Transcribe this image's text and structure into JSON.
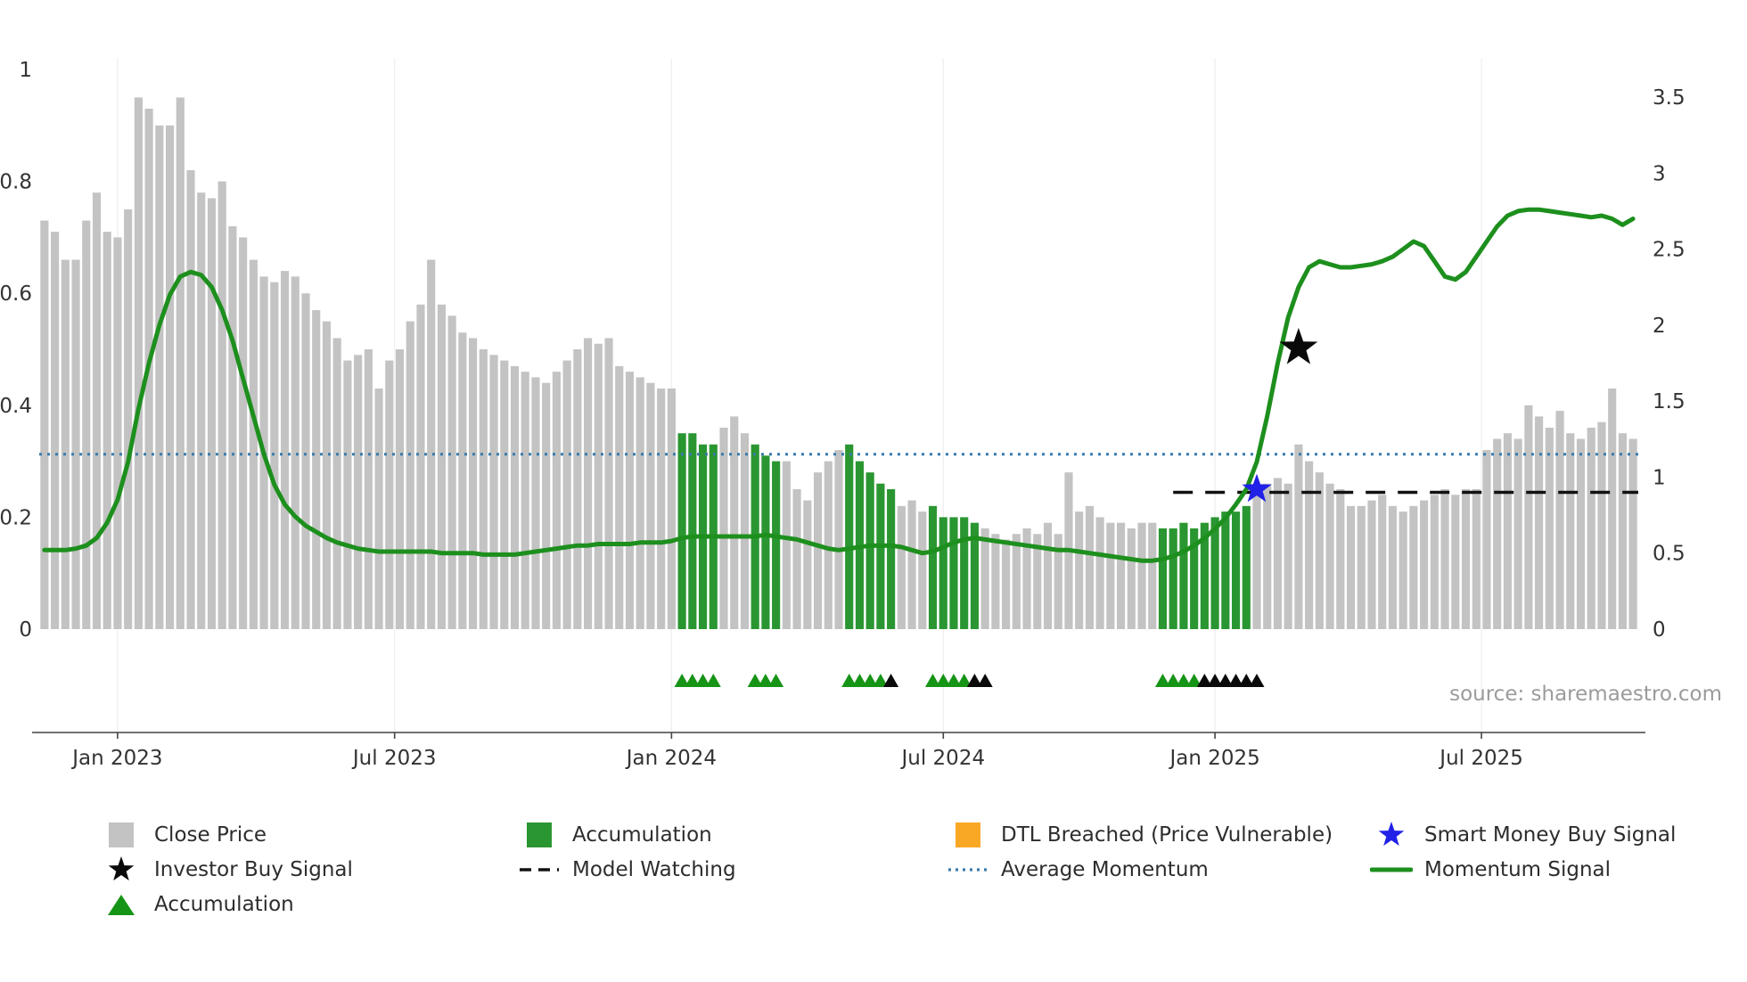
{
  "source_text": "source: sharemaestro.com",
  "colors": {
    "bar_gray": "#c3c3c3",
    "bar_green": "#2a9631",
    "momentum_green": "#1d8f1d",
    "avg_momentum_blue": "#3b7bab",
    "model_watching_black": "#111111",
    "smart_money_blue": "#2121e8",
    "investor_black": "#0a0a0a",
    "dtl_orange": "#f9a825",
    "triangle_green": "#169416",
    "triangle_black": "#0a0a0a"
  },
  "chart_data": {
    "type": "bar+line",
    "x_unit": "weekly",
    "x_tick_labels": [
      "Jan 2023",
      "Jul 2023",
      "Jan 2024",
      "Jul 2024",
      "Jan 2025",
      "Jul 2025"
    ],
    "x_tick_indices": [
      7,
      33.5,
      60,
      86,
      112,
      137.5
    ],
    "left_axis": {
      "ticks": [
        0,
        0.2,
        0.4,
        0.6,
        0.8,
        1
      ],
      "range": [
        0,
        1
      ]
    },
    "right_axis": {
      "ticks": [
        0,
        0.5,
        1,
        1.5,
        2,
        2.5,
        3,
        3.5
      ],
      "range": [
        0,
        3.5
      ]
    },
    "grid": "vertical-faint",
    "legend_position": "bottom",
    "series": [
      {
        "name": "Close Price",
        "type": "bar",
        "axis": "left",
        "values": [
          0.73,
          0.71,
          0.66,
          0.66,
          0.73,
          0.78,
          0.71,
          0.7,
          0.75,
          0.95,
          0.93,
          0.9,
          0.9,
          0.95,
          0.82,
          0.78,
          0.77,
          0.8,
          0.72,
          0.7,
          0.66,
          0.63,
          0.62,
          0.64,
          0.63,
          0.6,
          0.57,
          0.55,
          0.52,
          0.48,
          0.49,
          0.5,
          0.43,
          0.48,
          0.5,
          0.55,
          0.58,
          0.66,
          0.58,
          0.56,
          0.53,
          0.52,
          0.5,
          0.49,
          0.48,
          0.47,
          0.46,
          0.45,
          0.44,
          0.46,
          0.48,
          0.5,
          0.52,
          0.51,
          0.52,
          0.47,
          0.46,
          0.45,
          0.44,
          0.43,
          0.43,
          0.35,
          0.35,
          0.33,
          0.33,
          0.36,
          0.38,
          0.35,
          0.33,
          0.31,
          0.3,
          0.3,
          0.25,
          0.23,
          0.28,
          0.3,
          0.32,
          0.33,
          0.3,
          0.28,
          0.26,
          0.25,
          0.22,
          0.23,
          0.21,
          0.22,
          0.2,
          0.2,
          0.2,
          0.19,
          0.18,
          0.17,
          0.16,
          0.17,
          0.18,
          0.17,
          0.19,
          0.17,
          0.28,
          0.21,
          0.22,
          0.2,
          0.19,
          0.19,
          0.18,
          0.19,
          0.19,
          0.18,
          0.18,
          0.19,
          0.18,
          0.19,
          0.2,
          0.21,
          0.21,
          0.22,
          0.25,
          0.26,
          0.27,
          0.26,
          0.33,
          0.3,
          0.28,
          0.26,
          0.25,
          0.22,
          0.22,
          0.23,
          0.24,
          0.22,
          0.21,
          0.22,
          0.23,
          0.24,
          0.25,
          0.24,
          0.25,
          0.25,
          0.32,
          0.34,
          0.35,
          0.34,
          0.4,
          0.38,
          0.36,
          0.39,
          0.35,
          0.34,
          0.36,
          0.37,
          0.43,
          0.35,
          0.34
        ]
      },
      {
        "name": "Momentum Signal",
        "type": "line",
        "axis": "right",
        "values": [
          0.52,
          0.52,
          0.52,
          0.53,
          0.55,
          0.6,
          0.7,
          0.85,
          1.1,
          1.45,
          1.75,
          2.0,
          2.2,
          2.32,
          2.35,
          2.33,
          2.25,
          2.1,
          1.9,
          1.65,
          1.4,
          1.15,
          0.95,
          0.82,
          0.74,
          0.68,
          0.64,
          0.6,
          0.57,
          0.55,
          0.53,
          0.52,
          0.51,
          0.51,
          0.51,
          0.51,
          0.51,
          0.51,
          0.5,
          0.5,
          0.5,
          0.5,
          0.49,
          0.49,
          0.49,
          0.49,
          0.5,
          0.51,
          0.52,
          0.53,
          0.54,
          0.55,
          0.55,
          0.56,
          0.56,
          0.56,
          0.56,
          0.57,
          0.57,
          0.57,
          0.58,
          0.6,
          0.61,
          0.61,
          0.61,
          0.61,
          0.61,
          0.61,
          0.61,
          0.62,
          0.61,
          0.6,
          0.59,
          0.57,
          0.55,
          0.53,
          0.52,
          0.53,
          0.54,
          0.55,
          0.55,
          0.55,
          0.54,
          0.52,
          0.5,
          0.51,
          0.54,
          0.57,
          0.59,
          0.6,
          0.59,
          0.58,
          0.57,
          0.56,
          0.55,
          0.54,
          0.53,
          0.52,
          0.52,
          0.51,
          0.5,
          0.49,
          0.48,
          0.47,
          0.46,
          0.45,
          0.45,
          0.46,
          0.48,
          0.51,
          0.55,
          0.6,
          0.66,
          0.73,
          0.82,
          0.92,
          1.1,
          1.4,
          1.75,
          2.05,
          2.25,
          2.38,
          2.42,
          2.4,
          2.38,
          2.38,
          2.39,
          2.4,
          2.42,
          2.45,
          2.5,
          2.55,
          2.52,
          2.42,
          2.32,
          2.3,
          2.35,
          2.45,
          2.55,
          2.65,
          2.72,
          2.75,
          2.76,
          2.76,
          2.75,
          2.74,
          2.73,
          2.72,
          2.71,
          2.72,
          2.7,
          2.66,
          2.7
        ]
      }
    ],
    "accumulation_bar_indices": [
      61,
      62,
      63,
      64,
      68,
      69,
      70,
      77,
      78,
      79,
      80,
      81,
      85,
      86,
      87,
      88,
      89,
      107,
      108,
      109,
      110,
      111,
      112,
      113,
      114,
      115
    ],
    "average_momentum": {
      "value": 1.15,
      "axis": "right",
      "span": "full"
    },
    "model_watching": {
      "value": 0.9,
      "start_index": 108,
      "axis": "right"
    },
    "investor_buy_signal": {
      "index": 120,
      "value": 1.85,
      "axis": "right"
    },
    "smart_money_buy_signal": {
      "index": 116,
      "value": 0.92,
      "axis": "right"
    },
    "accumulation_markers_green": [
      61,
      62,
      63,
      64,
      68,
      69,
      70,
      77,
      78,
      79,
      80,
      85,
      86,
      87,
      88,
      107,
      108,
      109,
      110
    ],
    "accumulation_markers_black": [
      81,
      89,
      90,
      111,
      112,
      113,
      114,
      115,
      116
    ]
  },
  "legend": {
    "rows": [
      [
        {
          "marker": "square",
          "color": "#c3c3c3",
          "label": "Close Price"
        },
        {
          "marker": "square",
          "color": "#2a9631",
          "label": "Accumulation"
        },
        {
          "marker": "square",
          "color": "#f9a825",
          "label": "DTL Breached (Price Vulnerable)"
        },
        {
          "marker": "star",
          "color": "#2121e8",
          "label": "Smart Money Buy Signal"
        }
      ],
      [
        {
          "marker": "star",
          "color": "#0a0a0a",
          "label": "Investor Buy Signal"
        },
        {
          "marker": "dashed-line",
          "color": "#111111",
          "label": "Model Watching"
        },
        {
          "marker": "dotted-line",
          "color": "#3b7bab",
          "label": "Average Momentum"
        },
        {
          "marker": "solid-line",
          "color": "#1d8f1d",
          "label": "Momentum Signal"
        }
      ],
      [
        {
          "marker": "triangle",
          "color": "#169416",
          "label": "Accumulation"
        }
      ]
    ]
  }
}
